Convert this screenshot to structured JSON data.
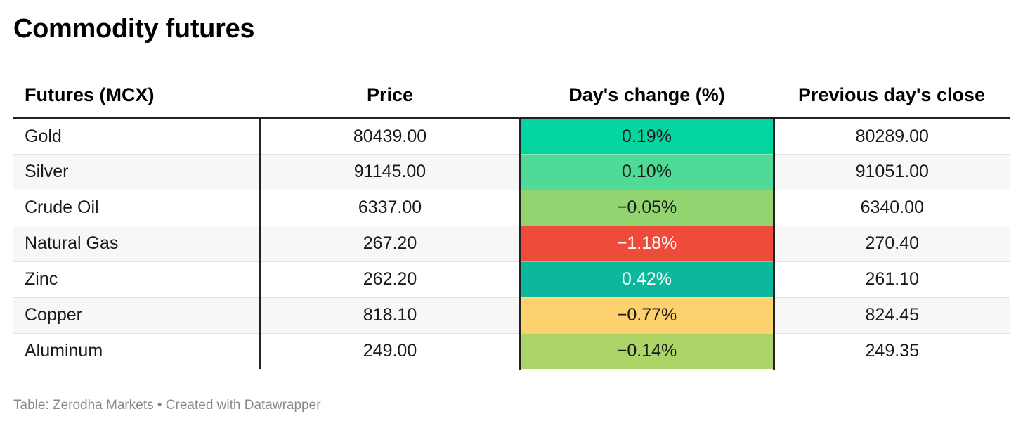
{
  "chart_data": {
    "type": "table",
    "title": "Commodity futures",
    "columns": [
      "Futures (MCX)",
      "Price",
      "Day's change (%)",
      "Previous day's close"
    ],
    "rows": [
      {
        "name": "Gold",
        "price": "80439.00",
        "change": "0.19%",
        "prev_close": "80289.00",
        "change_color": "#05d5a0",
        "change_text_color": "#1a1a1a"
      },
      {
        "name": "Silver",
        "price": "91145.00",
        "change": "0.10%",
        "prev_close": "91051.00",
        "change_color": "#4fdb97",
        "change_text_color": "#1a1a1a"
      },
      {
        "name": "Crude Oil",
        "price": "6337.00",
        "change": "−0.05%",
        "prev_close": "6340.00",
        "change_color": "#92d470",
        "change_text_color": "#1a1a1a"
      },
      {
        "name": "Natural Gas",
        "price": "267.20",
        "change": "−1.18%",
        "prev_close": "270.40",
        "change_color": "#ee4b3b",
        "change_text_color": "#ffffff"
      },
      {
        "name": "Zinc",
        "price": "262.20",
        "change": "0.42%",
        "prev_close": "261.10",
        "change_color": "#0bb89e",
        "change_text_color": "#ffffff"
      },
      {
        "name": "Copper",
        "price": "818.10",
        "change": "−0.77%",
        "prev_close": "824.45",
        "change_color": "#fdd26e",
        "change_text_color": "#1a1a1a"
      },
      {
        "name": "Aluminum",
        "price": "249.00",
        "change": "−0.14%",
        "prev_close": "249.35",
        "change_color": "#add466",
        "change_text_color": "#1a1a1a"
      }
    ]
  },
  "footer": {
    "source": "Table: Zerodha Markets • Created with Datawrapper"
  }
}
